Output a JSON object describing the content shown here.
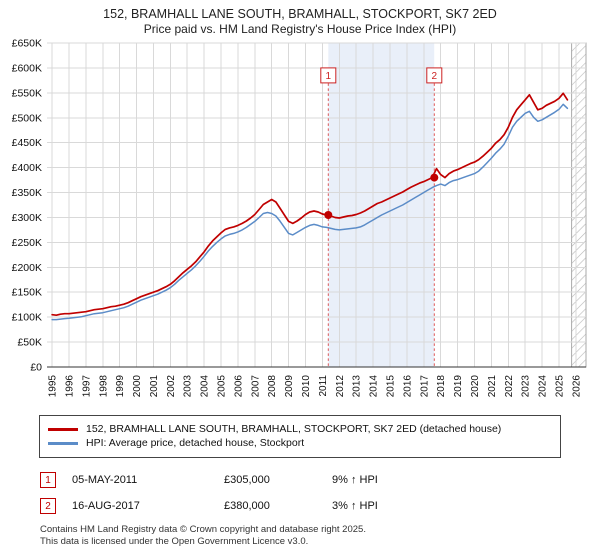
{
  "header": {
    "title": "152, BRAMHALL LANE SOUTH, BRAMHALL, STOCKPORT, SK7 2ED",
    "subtitle": "Price paid vs. HM Land Registry's House Price Index (HPI)"
  },
  "chart_data": {
    "type": "line",
    "title": "152, BRAMHALL LANE SOUTH, BRAMHALL, STOCKPORT, SK7 2ED Price paid vs. HM Land Registry's House Price Index (HPI)",
    "unit": "GBP thousands",
    "x_start": 1995.0,
    "x_step": 0.25,
    "x_min": 1994.7,
    "x_max": 2026.6,
    "y_min": 0,
    "y_max": 650,
    "grid": true,
    "x_ticks": [
      1995,
      1996,
      1997,
      1998,
      1999,
      2000,
      2001,
      2002,
      2003,
      2004,
      2005,
      2006,
      2007,
      2008,
      2009,
      2010,
      2011,
      2012,
      2013,
      2014,
      2015,
      2016,
      2017,
      2018,
      2019,
      2020,
      2021,
      2022,
      2023,
      2024,
      2025,
      2026
    ],
    "y_ticks": [
      {
        "value": 0,
        "label": "£0"
      },
      {
        "value": 50,
        "label": "£50K"
      },
      {
        "value": 100,
        "label": "£100K"
      },
      {
        "value": 150,
        "label": "£150K"
      },
      {
        "value": 200,
        "label": "£200K"
      },
      {
        "value": 250,
        "label": "£250K"
      },
      {
        "value": 300,
        "label": "£300K"
      },
      {
        "value": 350,
        "label": "£350K"
      },
      {
        "value": 400,
        "label": "£400K"
      },
      {
        "value": 450,
        "label": "£450K"
      },
      {
        "value": 500,
        "label": "£500K"
      },
      {
        "value": 550,
        "label": "£550K"
      },
      {
        "value": 600,
        "label": "£600K"
      },
      {
        "value": 650,
        "label": "£650K"
      }
    ],
    "series": [
      {
        "name": "152, BRAMHALL LANE SOUTH, BRAMHALL, STOCKPORT, SK7 2ED (detached house)",
        "color": "#c00000",
        "values": [
          105,
          104,
          106,
          107,
          107,
          108,
          109,
          110,
          111,
          113,
          115,
          116,
          117,
          119,
          121,
          122,
          124,
          126,
          129,
          133,
          137,
          141,
          144,
          147,
          150,
          153,
          157,
          161,
          166,
          173,
          181,
          189,
          196,
          203,
          211,
          221,
          231,
          243,
          253,
          261,
          269,
          276,
          279,
          281,
          284,
          288,
          293,
          299,
          306,
          316,
          326,
          331,
          336,
          331,
          318,
          305,
          292,
          288,
          293,
          299,
          306,
          311,
          313,
          311,
          307,
          305,
          303,
          300,
          299,
          301,
          303,
          304,
          306,
          309,
          313,
          318,
          323,
          328,
          331,
          335,
          339,
          343,
          347,
          351,
          356,
          361,
          365,
          369,
          372,
          376,
          380,
          398,
          386,
          380,
          388,
          393,
          396,
          400,
          404,
          408,
          411,
          416,
          423,
          431,
          439,
          449,
          456,
          466,
          481,
          501,
          516,
          526,
          536,
          546,
          531,
          516,
          519,
          525,
          529,
          533,
          539,
          549,
          536
        ]
      },
      {
        "name": "HPI: Average price, detached house, Stockport",
        "color": "#5b8cc8",
        "values": [
          95,
          95,
          96,
          97,
          98,
          99,
          100,
          101,
          103,
          105,
          107,
          108,
          109,
          111,
          113,
          115,
          117,
          119,
          122,
          126,
          130,
          134,
          137,
          140,
          143,
          146,
          150,
          154,
          159,
          166,
          174,
          181,
          188,
          195,
          203,
          212,
          222,
          233,
          242,
          250,
          257,
          263,
          266,
          268,
          271,
          275,
          280,
          286,
          292,
          300,
          308,
          310,
          308,
          303,
          292,
          280,
          268,
          265,
          270,
          275,
          280,
          284,
          286,
          284,
          281,
          280,
          278,
          276,
          275,
          276,
          277,
          278,
          279,
          281,
          285,
          290,
          295,
          300,
          305,
          309,
          313,
          317,
          321,
          325,
          330,
          335,
          340,
          345,
          350,
          355,
          360,
          364,
          367,
          364,
          370,
          374,
          376,
          379,
          382,
          385,
          388,
          393,
          401,
          410,
          419,
          429,
          437,
          447,
          463,
          481,
          493,
          501,
          509,
          513,
          501,
          493,
          496,
          501,
          506,
          511,
          517,
          527,
          519
        ]
      }
    ],
    "sale_markers": [
      {
        "label": "1",
        "x": 2011.35,
        "y": 305
      },
      {
        "label": "2",
        "x": 2017.62,
        "y": 380
      }
    ],
    "shaded_region": {
      "from": 2011.35,
      "to": 2017.62,
      "color": "#e9eff9"
    },
    "hatched_region": {
      "from": 2025.75,
      "to": 2026.6
    }
  },
  "sales": [
    {
      "num": "1",
      "date": "05-MAY-2011",
      "price": "£305,000",
      "hpi_note": "9% ↑ HPI"
    },
    {
      "num": "2",
      "date": "16-AUG-2017",
      "price": "£380,000",
      "hpi_note": "3% ↑ HPI"
    }
  ],
  "footer": {
    "line1": "Contains HM Land Registry data © Crown copyright and database right 2025.",
    "line2": "This data is licensed under the Open Government Licence v3.0."
  }
}
